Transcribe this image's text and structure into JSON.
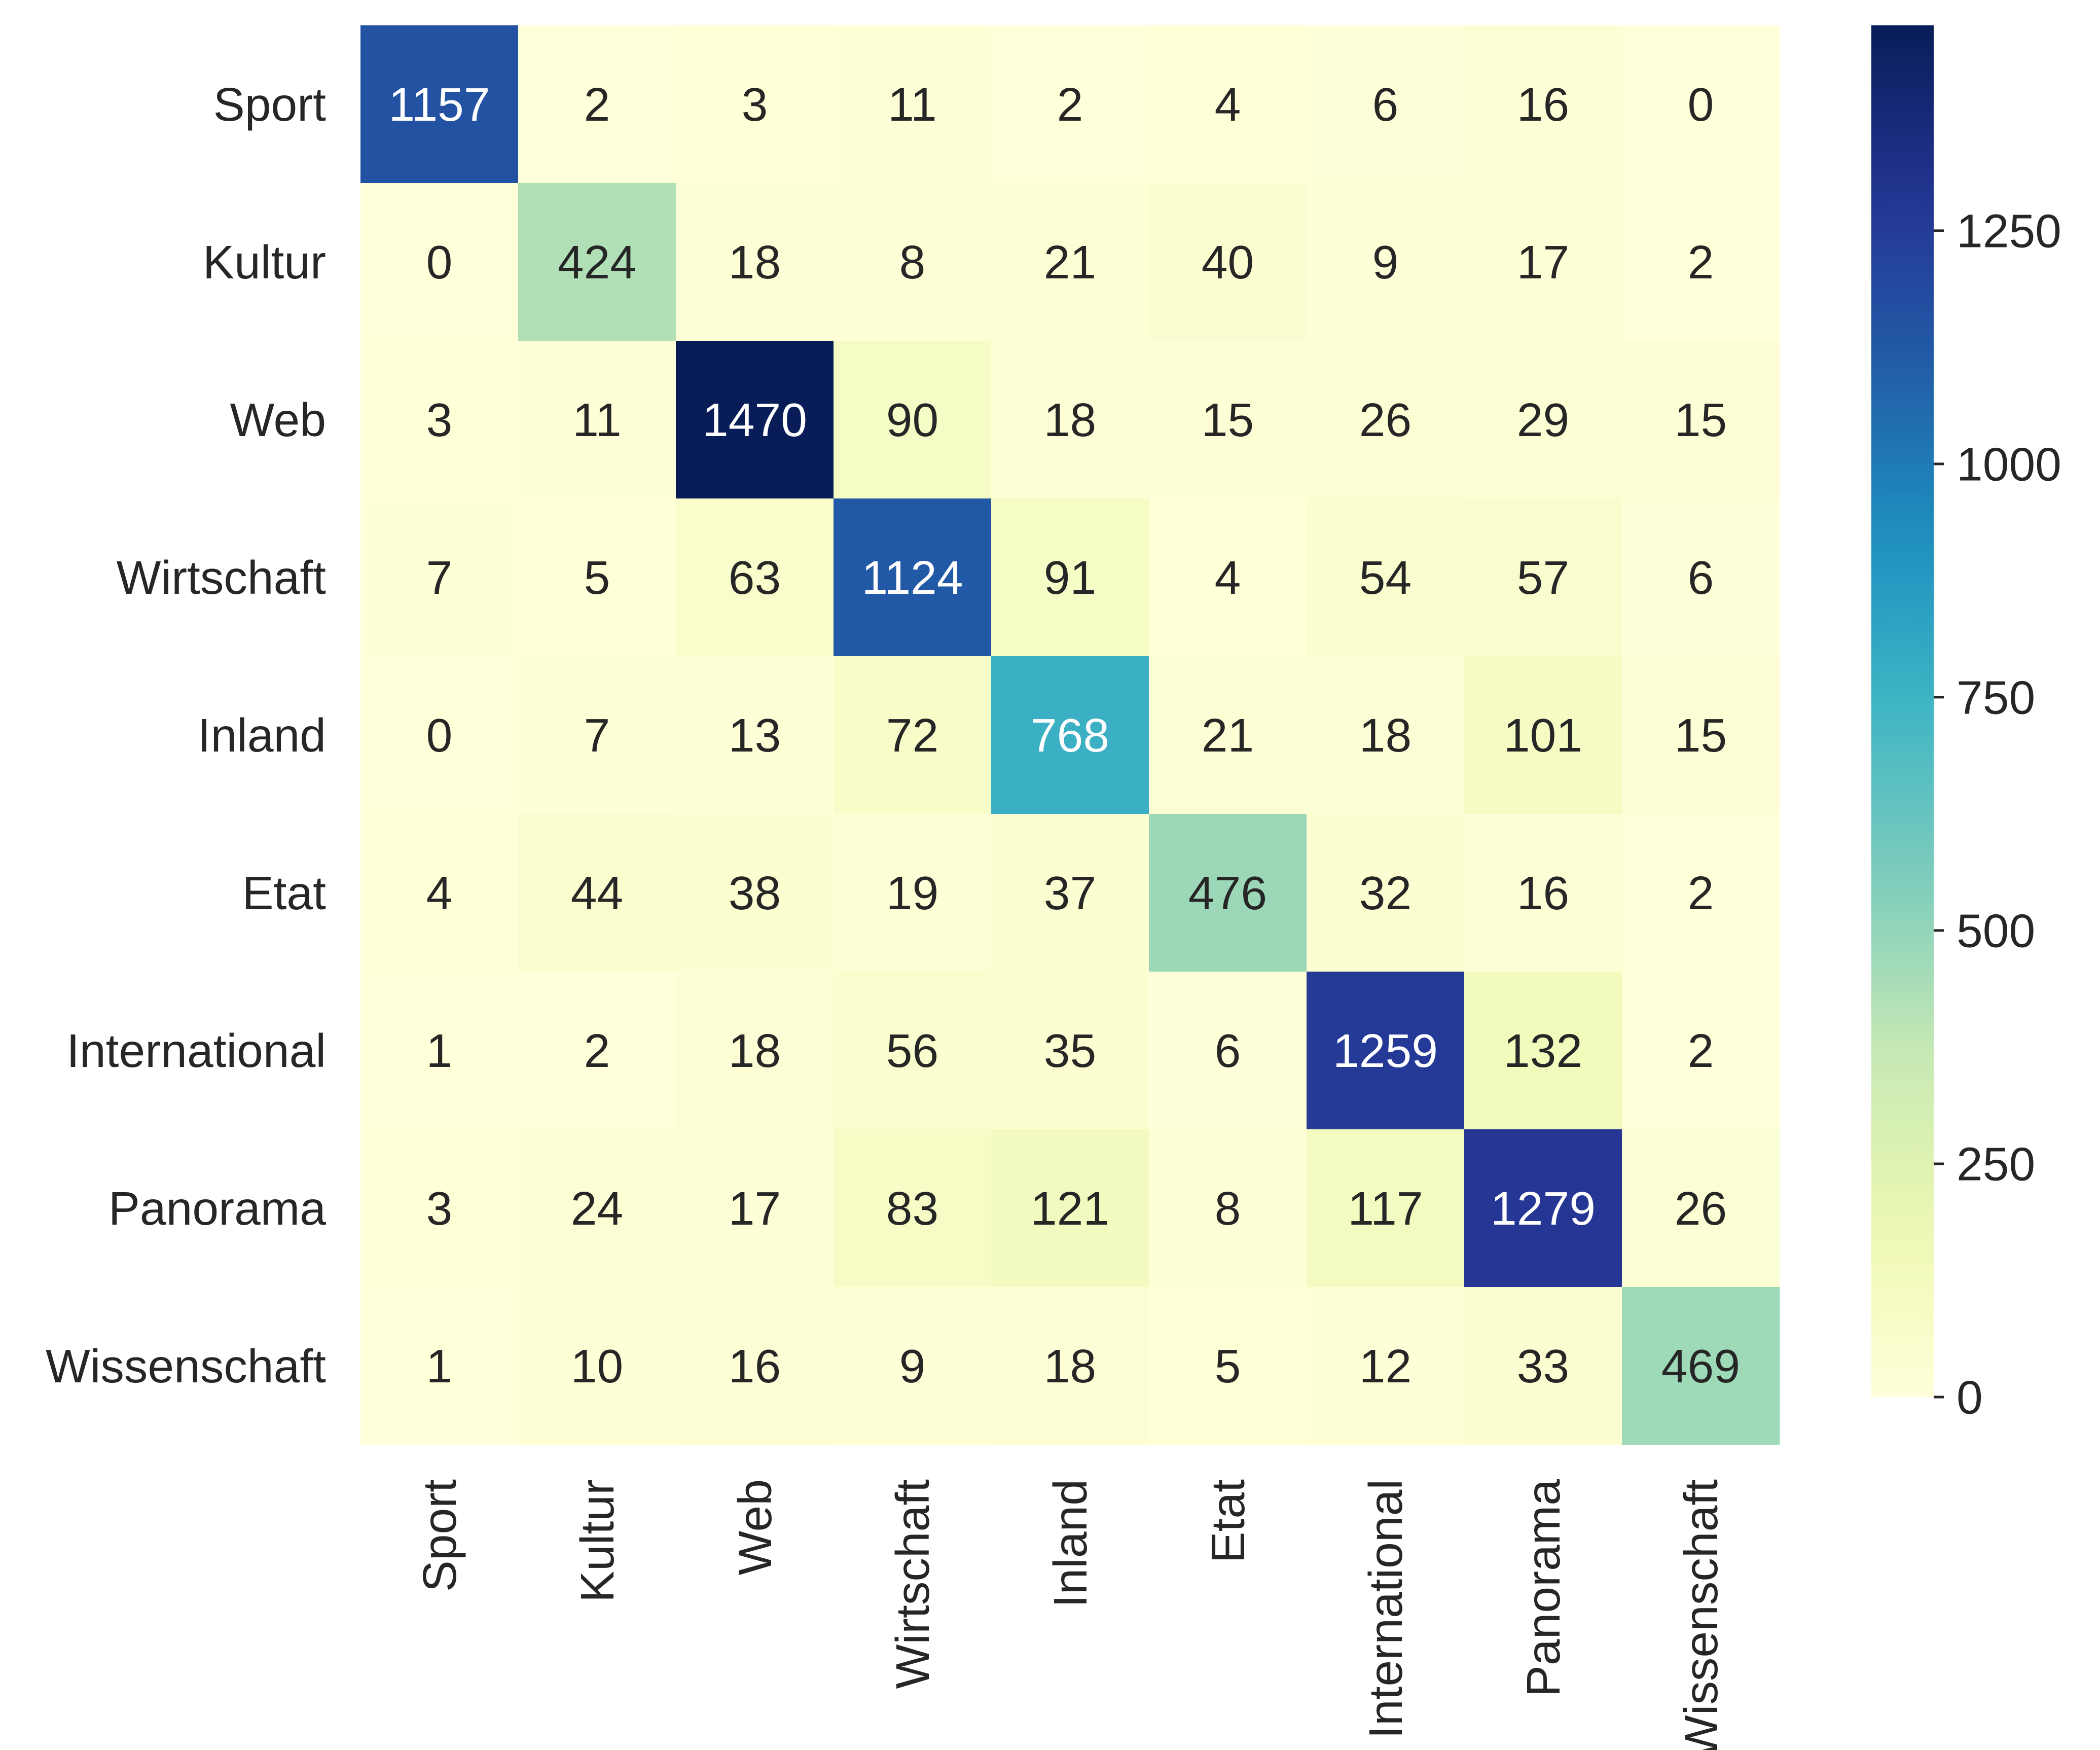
{
  "chart_data": {
    "type": "heatmap",
    "title": "",
    "xlabel": "",
    "ylabel": "",
    "row_labels": [
      "Sport",
      "Kultur",
      "Web",
      "Wirtschaft",
      "Inland",
      "Etat",
      "International",
      "Panorama",
      "Wissenschaft"
    ],
    "col_labels": [
      "Sport",
      "Kultur",
      "Web",
      "Wirtschaft",
      "Inland",
      "Etat",
      "International",
      "Panorama",
      "Wissenschaft"
    ],
    "values": [
      [
        1157,
        2,
        3,
        11,
        2,
        4,
        6,
        16,
        0
      ],
      [
        0,
        424,
        18,
        8,
        21,
        40,
        9,
        17,
        2
      ],
      [
        3,
        11,
        1470,
        90,
        18,
        15,
        26,
        29,
        15
      ],
      [
        7,
        5,
        63,
        1124,
        91,
        4,
        54,
        57,
        6
      ],
      [
        0,
        7,
        13,
        72,
        768,
        21,
        18,
        101,
        15
      ],
      [
        4,
        44,
        38,
        19,
        37,
        476,
        32,
        16,
        2
      ],
      [
        1,
        2,
        18,
        56,
        35,
        6,
        1259,
        132,
        2
      ],
      [
        3,
        24,
        17,
        83,
        121,
        8,
        117,
        1279,
        26
      ],
      [
        1,
        10,
        16,
        9,
        18,
        5,
        12,
        33,
        469
      ]
    ],
    "colormap": "YlGnBu",
    "colorbar": {
      "min": 0,
      "max": 1470,
      "ticks": [
        0,
        250,
        500,
        750,
        1000,
        1250
      ],
      "tick_labels": [
        "0",
        "250",
        "500",
        "750",
        "1000",
        "1250"
      ]
    },
    "grid": false,
    "legend": "colorbar right"
  },
  "colors": {
    "cmap_stops": [
      "#ffffd9",
      "#edf8b1",
      "#c7e9b4",
      "#7fcdbb",
      "#41b6c4",
      "#1d91c0",
      "#225ea8",
      "#253494",
      "#081d58"
    ],
    "text_dark": "#262626",
    "text_light": "#ffffff"
  }
}
